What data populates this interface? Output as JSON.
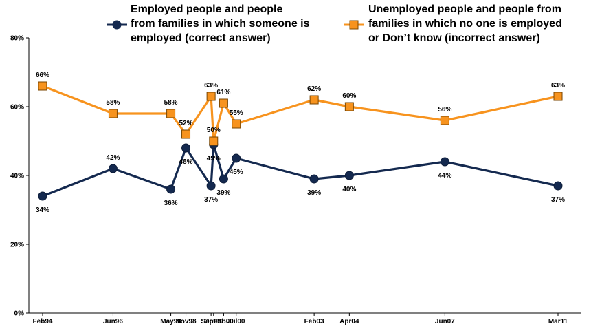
{
  "chart_data": {
    "type": "line",
    "x": [
      "Feb94",
      "Jun96",
      "May98",
      "Nov98",
      "Sep99",
      "Oct99",
      "Feb00",
      "Jul00",
      "Feb03",
      "Apr04",
      "Jun07",
      "Mar11"
    ],
    "x_dates": [
      "1994-02",
      "1996-06",
      "1998-05",
      "1998-11",
      "1999-09",
      "1999-10",
      "2000-02",
      "2000-07",
      "2003-02",
      "2004-04",
      "2007-06",
      "2011-03"
    ],
    "ylim": [
      0,
      80
    ],
    "y_ticks": [
      "0%",
      "20%",
      "40%",
      "60%",
      "80%"
    ],
    "y_tick_values": [
      0,
      20,
      40,
      60,
      80
    ],
    "grid": false,
    "legend_position": "top",
    "series": [
      {
        "name": "Employed people and people from families in which someone is employed (correct answer)",
        "legend_lines": [
          "Employed people and people",
          "from families in which someone is",
          "employed (correct answer)"
        ],
        "color": "#14294f",
        "marker": "circle",
        "values": [
          34,
          42,
          36,
          48,
          37,
          49,
          39,
          45,
          39,
          40,
          44,
          37
        ],
        "labels": [
          "34%",
          "42%",
          "36%",
          "48%",
          "37%",
          "49%",
          "39%",
          "45%",
          "39%",
          "40%",
          "44%",
          "37%"
        ]
      },
      {
        "name": "Unemployed people and people from families in which no one is employed or Don't know (incorrect answer)",
        "legend_lines": [
          "Unemployed people and people from",
          "families in which no one is employed",
          "or Don’t know (incorrect answer)"
        ],
        "color": "#f7931e",
        "marker": "square",
        "values": [
          66,
          58,
          58,
          52,
          63,
          50,
          61,
          55,
          62,
          60,
          56,
          63
        ],
        "labels": [
          "66%",
          "58%",
          "58%",
          "52%",
          "63%",
          "50%",
          "61%",
          "55%",
          "62%",
          "60%",
          "56%",
          "63%"
        ]
      }
    ]
  }
}
